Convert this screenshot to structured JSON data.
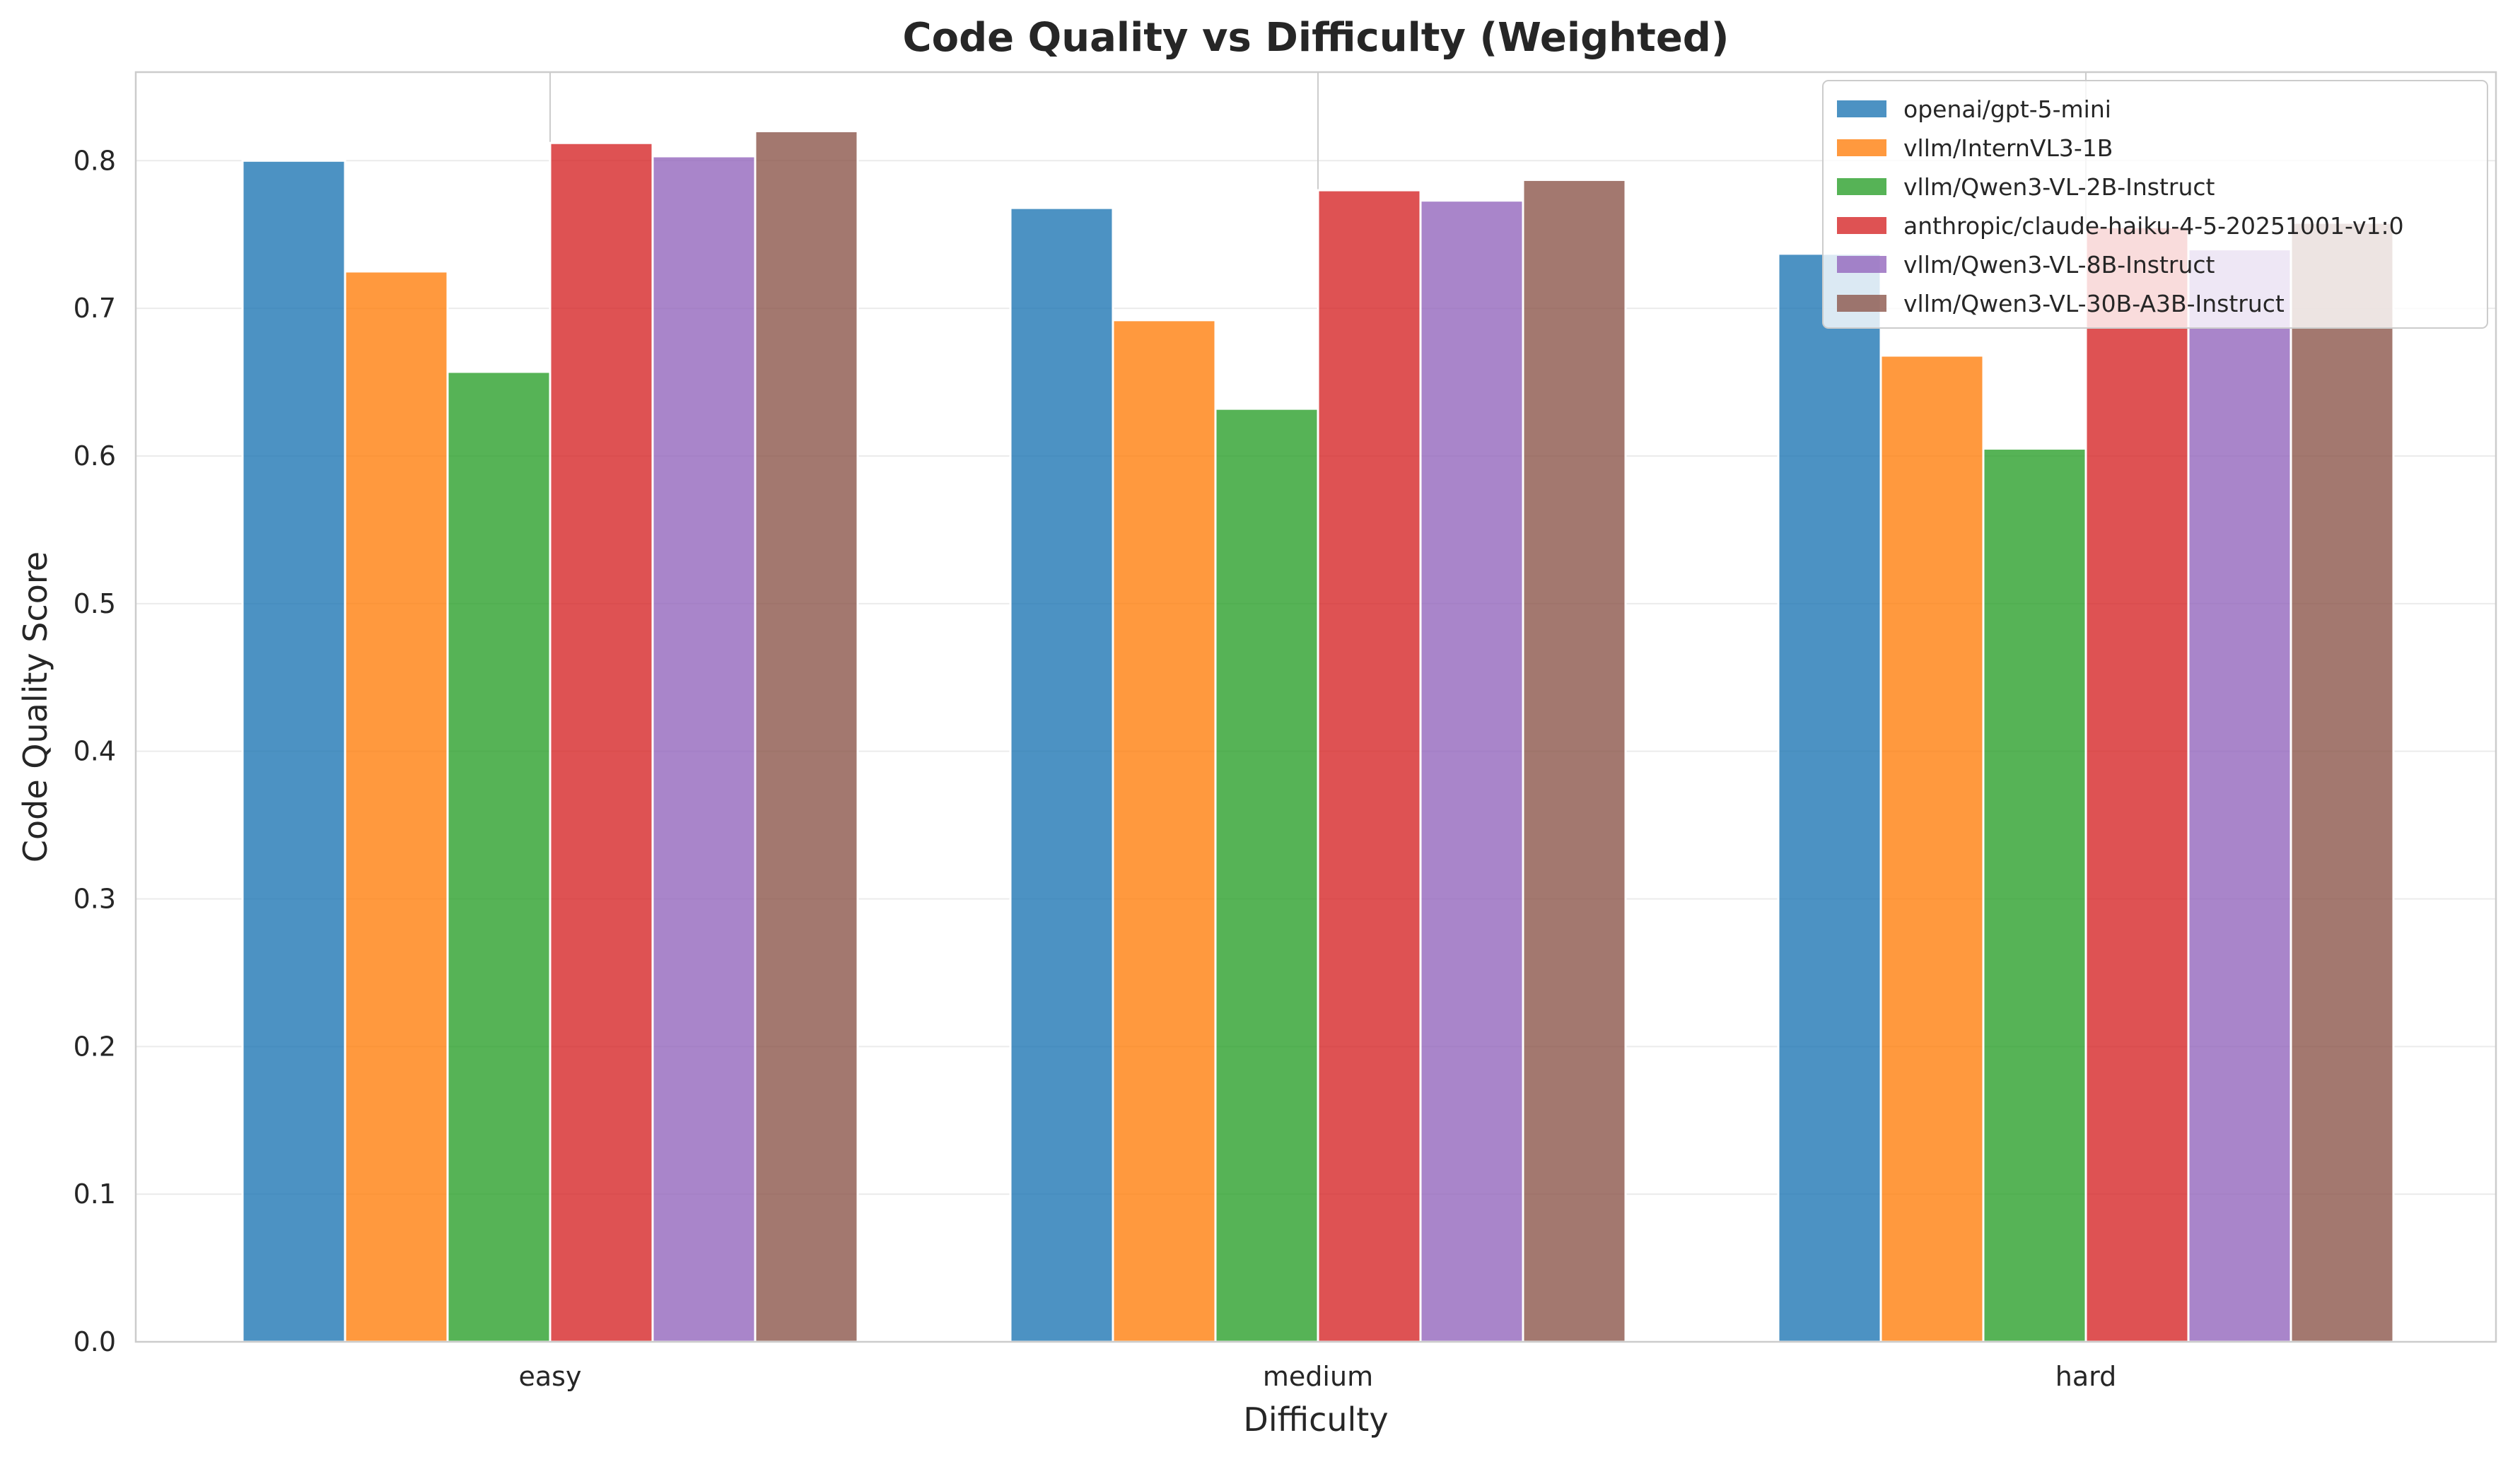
{
  "chart_data": {
    "type": "bar",
    "title": "Code Quality vs Difficulty (Weighted)",
    "xlabel": "Difficulty",
    "ylabel": "Code Quality Score",
    "categories": [
      "easy",
      "medium",
      "hard"
    ],
    "ylim": [
      0,
      0.86
    ],
    "yticks": [
      0.0,
      0.1,
      0.2,
      0.3,
      0.4,
      0.5,
      0.6,
      0.7,
      0.8
    ],
    "ytick_labels": [
      "0.0",
      "0.1",
      "0.2",
      "0.3",
      "0.4",
      "0.5",
      "0.6",
      "0.7",
      "0.8"
    ],
    "grid": true,
    "legend_position": "top-right",
    "series": [
      {
        "name": "openai/gpt-5-mini",
        "color": "#1f77b4",
        "values": [
          0.8,
          0.768,
          0.737
        ]
      },
      {
        "name": "vllm/InternVL3-1B",
        "color": "#ff7f0e",
        "values": [
          0.725,
          0.692,
          0.668
        ]
      },
      {
        "name": "vllm/Qwen3-VL-2B-Instruct",
        "color": "#2ca02c",
        "values": [
          0.657,
          0.632,
          0.605
        ]
      },
      {
        "name": "anthropic/claude-haiku-4-5-20251001-v1:0",
        "color": "#d62728",
        "values": [
          0.812,
          0.78,
          0.755
        ]
      },
      {
        "name": "vllm/Qwen3-VL-8B-Instruct",
        "color": "#9467bd",
        "values": [
          0.803,
          0.773,
          0.74
        ]
      },
      {
        "name": "vllm/Qwen3-VL-30B-A3B-Instruct",
        "color": "#8c564b",
        "values": [
          0.82,
          0.787,
          0.758
        ]
      }
    ]
  }
}
